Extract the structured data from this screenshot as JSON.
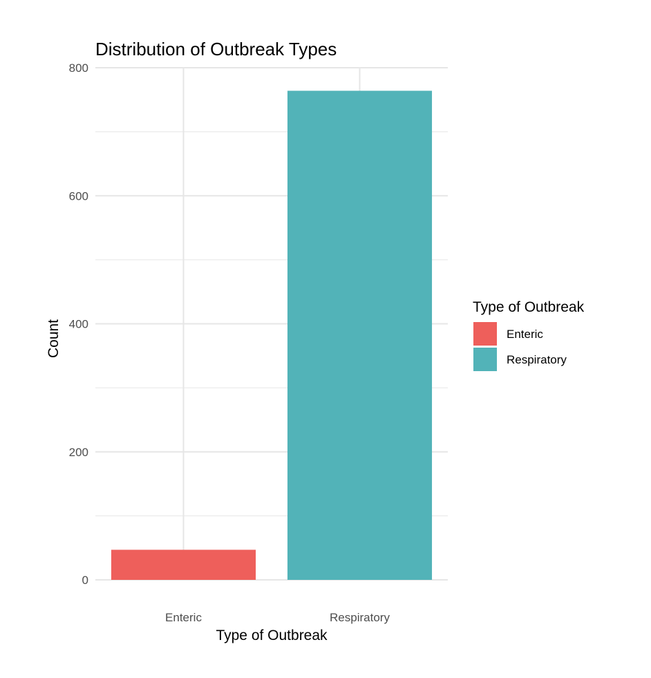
{
  "chart_data": {
    "type": "bar",
    "title": "Distribution of Outbreak Types",
    "xlabel": "Type of Outbreak",
    "ylabel": "Count",
    "categories": [
      "Enteric",
      "Respiratory"
    ],
    "values": [
      47,
      764
    ],
    "colors": [
      "#EE5F5B",
      "#52B3B8"
    ],
    "ylim": [
      0,
      800
    ],
    "yticks": [
      0,
      200,
      400,
      600,
      800
    ],
    "grid": true,
    "legend": {
      "title": "Type of Outbreak",
      "placement": "right",
      "items": [
        "Enteric",
        "Respiratory"
      ]
    }
  }
}
